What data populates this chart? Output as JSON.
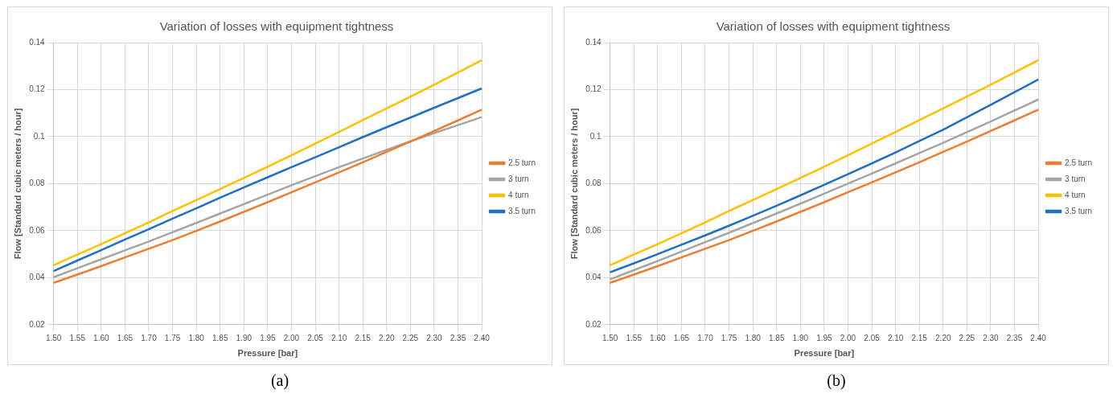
{
  "chart_data": [
    {
      "type": "line",
      "title": "Variation of losses with equipment tightness",
      "xlabel": "Pressure [bar]",
      "ylabel": "Flow [Standard cubic meters / hour]",
      "annotations": [
        "(a)"
      ],
      "categories": [
        "1.50",
        "1.55",
        "1.60",
        "1.65",
        "1.70",
        "1.75",
        "1.80",
        "1.85",
        "1.90",
        "1.95",
        "2.00",
        "2.05",
        "2.10",
        "2.15",
        "2.20",
        "2.25",
        "2.30",
        "2.35",
        "2.40"
      ],
      "ylim": [
        0.02,
        0.14
      ],
      "yticks": [
        0.02,
        0.04,
        0.06,
        0.08,
        0.1,
        0.12,
        0.14
      ],
      "grid": true,
      "legend": "right",
      "marker": "none",
      "series": [
        {
          "name": "2.5 turn",
          "color": "#ed7d31",
          "values": [
            0.0378,
            0.0413,
            0.0449,
            0.0486,
            0.0523,
            0.056,
            0.0599,
            0.0639,
            0.068,
            0.0721,
            0.0763,
            0.0805,
            0.0848,
            0.0891,
            0.0935,
            0.0979,
            0.1024,
            0.1069,
            0.1115
          ]
        },
        {
          "name": "3 turn",
          "color": "#a5a5a5",
          "values": [
            0.0402,
            0.044,
            0.0478,
            0.0516,
            0.0554,
            0.0593,
            0.0633,
            0.0673,
            0.0713,
            0.0753,
            0.0793,
            0.0832,
            0.087,
            0.0907,
            0.0944,
            0.098,
            0.1015,
            0.1049,
            0.1083
          ]
        },
        {
          "name": "4 turn",
          "color": "#ffc000",
          "values": [
            0.0453,
            0.0498,
            0.0543,
            0.0589,
            0.0635,
            0.0684,
            0.073,
            0.0777,
            0.0824,
            0.0872,
            0.0921,
            0.097,
            0.102,
            0.107,
            0.112,
            0.117,
            0.1221,
            0.1273,
            0.1325
          ]
        },
        {
          "name": "3.5 turn",
          "color": "#1f6fc5",
          "values": [
            0.0428,
            0.0473,
            0.0517,
            0.0562,
            0.0606,
            0.0651,
            0.0695,
            0.074,
            0.0784,
            0.0827,
            0.087,
            0.0912,
            0.0955,
            0.0998,
            0.104,
            0.1081,
            0.1123,
            0.1164,
            0.1205
          ]
        }
      ]
    },
    {
      "type": "line",
      "title": "Variation of losses with equipment tightness",
      "xlabel": "Pressure [bar]",
      "ylabel": "Flow [Standard cubic meters / hour]",
      "annotations": [
        "(b)"
      ],
      "categories": [
        "1.50",
        "1.55",
        "1.60",
        "1.65",
        "1.70",
        "1.75",
        "1.80",
        "1.85",
        "1.90",
        "1.95",
        "2.00",
        "2.05",
        "2.10",
        "2.15",
        "2.20",
        "2.25",
        "2.30",
        "2.35",
        "2.40"
      ],
      "ylim": [
        0.02,
        0.14
      ],
      "yticks": [
        0.02,
        0.04,
        0.06,
        0.08,
        0.1,
        0.12,
        0.14
      ],
      "grid": true,
      "legend": "right",
      "marker": "none",
      "series": [
        {
          "name": "2.5 turn",
          "color": "#ed7d31",
          "values": [
            0.0378,
            0.0413,
            0.0449,
            0.0486,
            0.0523,
            0.056,
            0.0599,
            0.0639,
            0.068,
            0.0721,
            0.0763,
            0.0805,
            0.0848,
            0.0891,
            0.0935,
            0.0979,
            0.1024,
            0.1069,
            0.1115
          ]
        },
        {
          "name": "3 turn",
          "color": "#a5a5a5",
          "values": [
            0.0393,
            0.0432,
            0.0471,
            0.0511,
            0.0551,
            0.0591,
            0.0632,
            0.0673,
            0.0715,
            0.0757,
            0.08,
            0.0843,
            0.0886,
            0.093,
            0.0974,
            0.1019,
            0.1064,
            0.1111,
            0.1158
          ]
        },
        {
          "name": "4 turn",
          "color": "#ffc000",
          "values": [
            0.0453,
            0.0498,
            0.0543,
            0.0589,
            0.0635,
            0.0684,
            0.073,
            0.0777,
            0.0824,
            0.0872,
            0.0921,
            0.097,
            0.102,
            0.107,
            0.112,
            0.117,
            0.1221,
            0.1273,
            0.1325
          ]
        },
        {
          "name": "3.5 turn",
          "color": "#1f6fc5",
          "values": [
            0.0423,
            0.0461,
            0.05,
            0.054,
            0.058,
            0.0621,
            0.0663,
            0.0706,
            0.075,
            0.0795,
            0.084,
            0.0886,
            0.0933,
            0.0981,
            0.1029,
            0.1082,
            0.1135,
            0.1189,
            0.1243
          ]
        }
      ]
    }
  ]
}
